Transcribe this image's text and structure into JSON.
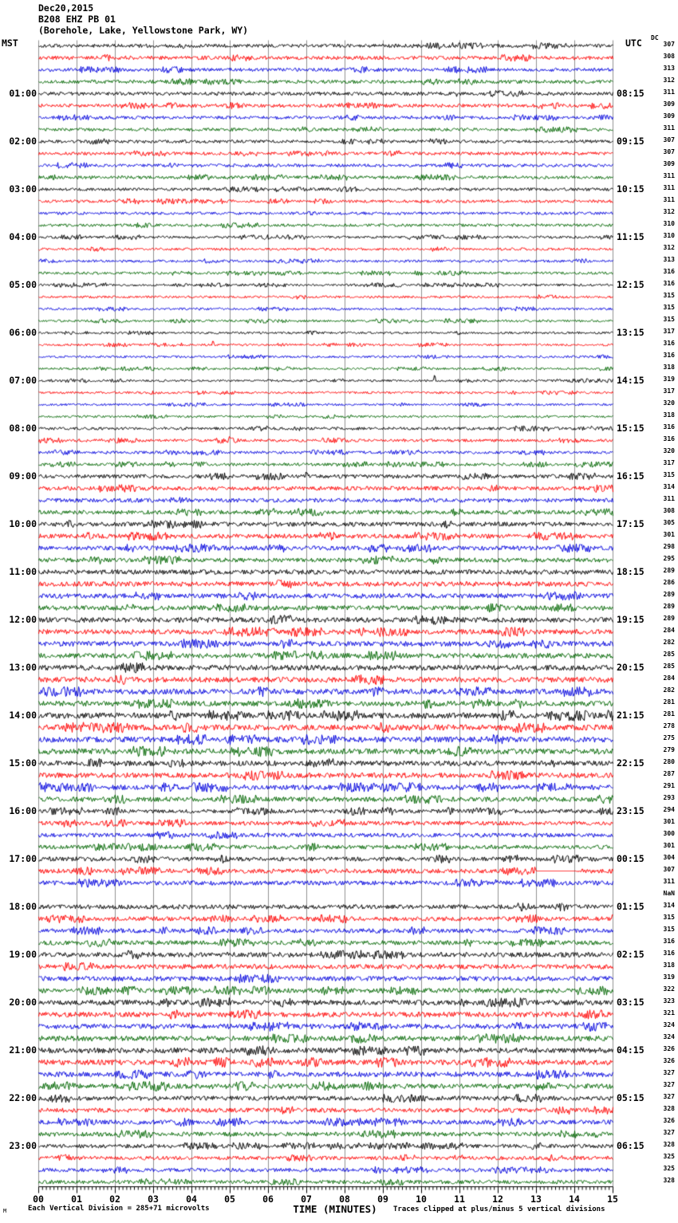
{
  "header": {
    "date": "Dec20,2015",
    "station": "B208 EHZ PB 01",
    "location": "(Borehole, Lake, Yellowstone Park, WY)"
  },
  "axes": {
    "left_label": "MST",
    "right_label": "UTC",
    "dc_label": "DC",
    "x_title": "TIME (MINUTES)",
    "x_ticks": [
      "00",
      "01",
      "02",
      "03",
      "04",
      "05",
      "06",
      "07",
      "08",
      "09",
      "10",
      "11",
      "12",
      "13",
      "14",
      "15"
    ]
  },
  "footer": {
    "scale_note": "Each Vertical Division =  285+71 microvolts",
    "clip_note": "Traces clipped at plus/minus 5 vertical divisions",
    "watermark": "M"
  },
  "chart_data": {
    "type": "line",
    "title": "B208 EHZ PB 01 helicorder (Borehole, Lake, Yellowstone Park, WY) Dec20,2015",
    "xlabel": "TIME (MINUTES)",
    "x_range_minutes": [
      0,
      15
    ],
    "minutes_per_line": 15,
    "lines_per_hour": 4,
    "left_timezone": "MST",
    "right_timezone": "UTC",
    "grid": "vertical lines every minute",
    "trace_colors": {
      "black": "#000000",
      "red": "#ff0000",
      "blue": "#0000dd",
      "green": "#006600"
    },
    "grid_color": "#909090",
    "rows": [
      {
        "color": "black",
        "dc": "307",
        "amp": 2.2
      },
      {
        "color": "red",
        "dc": "308",
        "amp": 2.4
      },
      {
        "color": "blue",
        "dc": "313",
        "amp": 2.2
      },
      {
        "color": "green",
        "dc": "312",
        "amp": 2.2
      },
      {
        "color": "black",
        "dc": "311",
        "amp": 2.2,
        "mst": "01:00",
        "utc": "08:15"
      },
      {
        "color": "red",
        "dc": "309",
        "amp": 2.2
      },
      {
        "color": "blue",
        "dc": "309",
        "amp": 2.0
      },
      {
        "color": "green",
        "dc": "311",
        "amp": 2.0
      },
      {
        "color": "black",
        "dc": "307",
        "amp": 2.0,
        "mst": "02:00",
        "utc": "09:15"
      },
      {
        "color": "red",
        "dc": "307",
        "amp": 2.0
      },
      {
        "color": "blue",
        "dc": "309",
        "amp": 2.0
      },
      {
        "color": "green",
        "dc": "311",
        "amp": 2.0
      },
      {
        "color": "black",
        "dc": "311",
        "amp": 1.9,
        "mst": "03:00",
        "utc": "10:15"
      },
      {
        "color": "red",
        "dc": "311",
        "amp": 1.9
      },
      {
        "color": "blue",
        "dc": "312",
        "amp": 1.8
      },
      {
        "color": "green",
        "dc": "310",
        "amp": 1.8
      },
      {
        "color": "black",
        "dc": "310",
        "amp": 1.6,
        "mst": "04:00",
        "utc": "11:15"
      },
      {
        "color": "red",
        "dc": "312",
        "amp": 1.6
      },
      {
        "color": "blue",
        "dc": "313",
        "amp": 1.6
      },
      {
        "color": "green",
        "dc": "316",
        "amp": 1.6
      },
      {
        "color": "black",
        "dc": "316",
        "amp": 1.5,
        "mst": "05:00",
        "utc": "12:15"
      },
      {
        "color": "red",
        "dc": "315",
        "amp": 1.5
      },
      {
        "color": "blue",
        "dc": "315",
        "amp": 1.5
      },
      {
        "color": "green",
        "dc": "315",
        "amp": 1.5
      },
      {
        "color": "black",
        "dc": "317",
        "amp": 1.4,
        "mst": "06:00",
        "utc": "13:15"
      },
      {
        "color": "red",
        "dc": "316",
        "amp": 1.4
      },
      {
        "color": "blue",
        "dc": "316",
        "amp": 1.4
      },
      {
        "color": "green",
        "dc": "318",
        "amp": 1.4
      },
      {
        "color": "black",
        "dc": "319",
        "amp": 1.4,
        "mst": "07:00",
        "utc": "14:15"
      },
      {
        "color": "red",
        "dc": "317",
        "amp": 1.4
      },
      {
        "color": "blue",
        "dc": "320",
        "amp": 1.4
      },
      {
        "color": "green",
        "dc": "318",
        "amp": 1.4
      },
      {
        "color": "black",
        "dc": "316",
        "amp": 1.8,
        "mst": "08:00",
        "utc": "15:15"
      },
      {
        "color": "red",
        "dc": "316",
        "amp": 1.8
      },
      {
        "color": "blue",
        "dc": "320",
        "amp": 1.8
      },
      {
        "color": "green",
        "dc": "317",
        "amp": 1.9
      },
      {
        "color": "black",
        "dc": "315",
        "amp": 2.4,
        "mst": "09:00",
        "utc": "16:15"
      },
      {
        "color": "red",
        "dc": "314",
        "amp": 2.6
      },
      {
        "color": "blue",
        "dc": "311",
        "amp": 2.6
      },
      {
        "color": "green",
        "dc": "308",
        "amp": 2.6
      },
      {
        "color": "black",
        "dc": "305",
        "amp": 2.8,
        "mst": "10:00",
        "utc": "17:15"
      },
      {
        "color": "red",
        "dc": "301",
        "amp": 2.8
      },
      {
        "color": "blue",
        "dc": "298",
        "amp": 2.8
      },
      {
        "color": "green",
        "dc": "295",
        "amp": 2.8
      },
      {
        "color": "black",
        "dc": "289",
        "amp": 3.0,
        "mst": "11:00",
        "utc": "18:15"
      },
      {
        "color": "red",
        "dc": "286",
        "amp": 3.0
      },
      {
        "color": "blue",
        "dc": "289",
        "amp": 3.0
      },
      {
        "color": "green",
        "dc": "289",
        "amp": 3.0
      },
      {
        "color": "black",
        "dc": "289",
        "amp": 3.2,
        "mst": "12:00",
        "utc": "19:15"
      },
      {
        "color": "red",
        "dc": "284",
        "amp": 3.2
      },
      {
        "color": "blue",
        "dc": "282",
        "amp": 3.2
      },
      {
        "color": "green",
        "dc": "285",
        "amp": 3.2
      },
      {
        "color": "black",
        "dc": "285",
        "amp": 3.4,
        "mst": "13:00",
        "utc": "20:15"
      },
      {
        "color": "red",
        "dc": "284",
        "amp": 3.4
      },
      {
        "color": "blue",
        "dc": "282",
        "amp": 3.4
      },
      {
        "color": "green",
        "dc": "281",
        "amp": 3.4
      },
      {
        "color": "black",
        "dc": "281",
        "amp": 3.6,
        "mst": "14:00",
        "utc": "21:15"
      },
      {
        "color": "red",
        "dc": "278",
        "amp": 3.6
      },
      {
        "color": "blue",
        "dc": "275",
        "amp": 3.6
      },
      {
        "color": "green",
        "dc": "279",
        "amp": 3.5
      },
      {
        "color": "black",
        "dc": "280",
        "amp": 3.2,
        "mst": "15:00",
        "utc": "22:15"
      },
      {
        "color": "red",
        "dc": "287",
        "amp": 3.2
      },
      {
        "color": "blue",
        "dc": "291",
        "amp": 3.2
      },
      {
        "color": "green",
        "dc": "293",
        "amp": 3.0
      },
      {
        "color": "black",
        "dc": "294",
        "amp": 2.6,
        "mst": "16:00",
        "utc": "23:15"
      },
      {
        "color": "red",
        "dc": "301",
        "amp": 2.6
      },
      {
        "color": "blue",
        "dc": "300",
        "amp": 2.6
      },
      {
        "color": "green",
        "dc": "301",
        "amp": 2.6
      },
      {
        "color": "black",
        "dc": "304",
        "amp": 2.8,
        "mst": "17:00",
        "utc": "00:15"
      },
      {
        "color": "red",
        "dc": "307",
        "amp": 2.8
      },
      {
        "color": "blue",
        "dc": "311",
        "amp": 2.8
      },
      {
        "color": "green",
        "dc": "NaN",
        "amp": 0
      },
      {
        "color": "black",
        "dc": "314",
        "amp": 2.8,
        "mst": "18:00",
        "utc": "01:15"
      },
      {
        "color": "red",
        "dc": "315",
        "amp": 2.8
      },
      {
        "color": "blue",
        "dc": "315",
        "amp": 2.8
      },
      {
        "color": "green",
        "dc": "316",
        "amp": 2.8
      },
      {
        "color": "black",
        "dc": "316",
        "amp": 3.0,
        "mst": "19:00",
        "utc": "02:15"
      },
      {
        "color": "red",
        "dc": "318",
        "amp": 3.0
      },
      {
        "color": "blue",
        "dc": "319",
        "amp": 3.0
      },
      {
        "color": "green",
        "dc": "322",
        "amp": 3.0
      },
      {
        "color": "black",
        "dc": "323",
        "amp": 3.2,
        "mst": "20:00",
        "utc": "03:15"
      },
      {
        "color": "red",
        "dc": "321",
        "amp": 3.2
      },
      {
        "color": "blue",
        "dc": "324",
        "amp": 3.2
      },
      {
        "color": "green",
        "dc": "324",
        "amp": 3.2
      },
      {
        "color": "black",
        "dc": "326",
        "amp": 3.4,
        "mst": "21:00",
        "utc": "04:15"
      },
      {
        "color": "red",
        "dc": "326",
        "amp": 3.4
      },
      {
        "color": "blue",
        "dc": "327",
        "amp": 3.2
      },
      {
        "color": "green",
        "dc": "327",
        "amp": 3.2
      },
      {
        "color": "black",
        "dc": "327",
        "amp": 2.8,
        "mst": "22:00",
        "utc": "05:15"
      },
      {
        "color": "red",
        "dc": "328",
        "amp": 2.8
      },
      {
        "color": "blue",
        "dc": "326",
        "amp": 2.8
      },
      {
        "color": "green",
        "dc": "327",
        "amp": 2.8
      },
      {
        "color": "black",
        "dc": "328",
        "amp": 2.4,
        "mst": "23:00",
        "utc": "06:15"
      },
      {
        "color": "red",
        "dc": "325",
        "amp": 2.4
      },
      {
        "color": "blue",
        "dc": "325",
        "amp": 2.4
      },
      {
        "color": "green",
        "dc": "328",
        "amp": 2.4
      }
    ],
    "events": [
      {
        "row": 26,
        "kind": "spike",
        "minute": 4.55,
        "height": 6
      },
      {
        "row": 29,
        "kind": "spike",
        "minute": 10.35,
        "height": 7
      },
      {
        "row": 34,
        "kind": "spike",
        "minute": 5.0,
        "height": 5
      },
      {
        "row": 37,
        "kind": "spike",
        "minute": 7.0,
        "height": 6
      },
      {
        "row": 70,
        "kind": "flat",
        "start_minute": 13.0,
        "end_minute": 14.05
      },
      {
        "row": 72,
        "kind": "missing-trace"
      }
    ]
  }
}
